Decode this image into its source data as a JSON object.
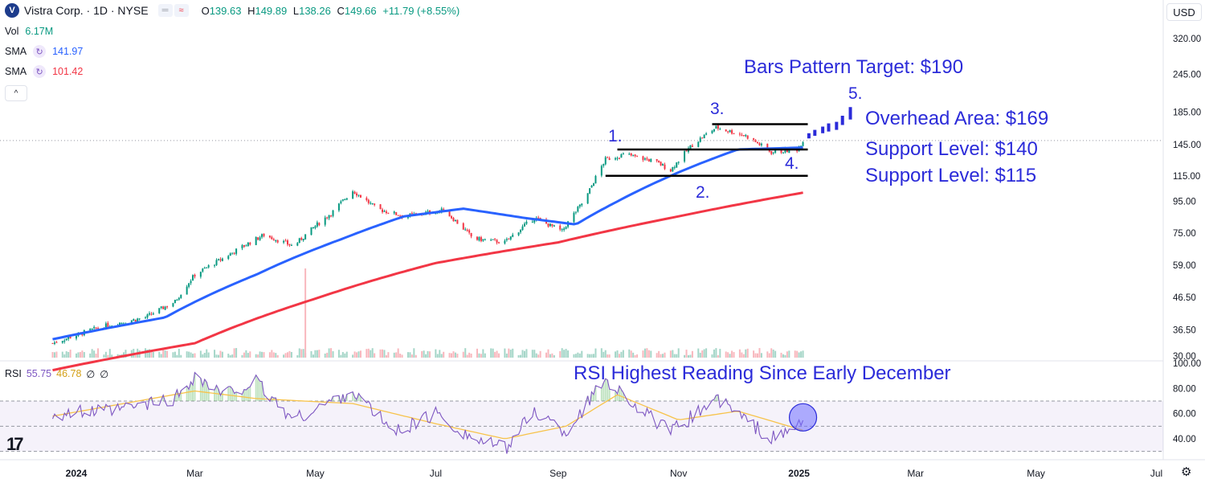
{
  "header": {
    "symbol_title": "Vistra Corp. · 1D · NYSE",
    "logo_letter": "V",
    "pill_1": "═",
    "pill_2": "≈",
    "open_label": "O",
    "open": "139.63",
    "high_label": "H",
    "high": "149.89",
    "low_label": "L",
    "low": "138.26",
    "close_label": "C",
    "close": "149.66",
    "change": "+11.79 (+8.55%)",
    "currency": "USD"
  },
  "indicators": {
    "vol_label": "Vol",
    "vol_value": "6.17M",
    "sma1_label": "SMA",
    "sma1_value": "141.97",
    "sma2_label": "SMA",
    "sma2_value": "101.42",
    "rsi_label": "RSI",
    "rsi_value": "55.75",
    "rsi_ma_value": "46.78",
    "rsi_extra1": "∅",
    "rsi_extra2": "∅",
    "sma_icon": "↻",
    "collapse_icon": "^",
    "tv_logo": "17",
    "gear_icon": "⚙"
  },
  "colors": {
    "up": "#089981",
    "down": "#f23645",
    "sma_fast": "#2962ff",
    "sma_slow": "#f23645",
    "rsi": "#7e57c2",
    "rsi_ma": "#f7c34a",
    "annotation": "#2b2bd9"
  },
  "annotations": {
    "target": "Bars Pattern Target: $190",
    "overhead": "Overhead Area: $169",
    "support_140": "Support Level: $140",
    "support_115": "Support Level: $115",
    "rsi_note": "RSI Highest Reading Since Early December",
    "n1": "1.",
    "n2": "2.",
    "n3": "3.",
    "n4": "4.",
    "n5": "5."
  },
  "chart_data": {
    "type": "candlestick",
    "scale": "log",
    "y_ticks": [
      "320.00",
      "245.00",
      "185.00",
      "145.00",
      "115.00",
      "95.00",
      "75.00",
      "59.00",
      "46.50",
      "36.50",
      "30.00"
    ],
    "x_ticks": [
      "2024",
      "Mar",
      "May",
      "Jul",
      "Sep",
      "Nov",
      "2025",
      "Mar",
      "May",
      "Jul"
    ],
    "rsi_ticks": [
      "100.00",
      "80.00",
      "60.00",
      "40.00"
    ],
    "rsi_levels": [
      70,
      50,
      30
    ],
    "price_anchors": [
      [
        "2023-12-20",
        33
      ],
      [
        "2024-01-15",
        37.5
      ],
      [
        "2024-02-05",
        40
      ],
      [
        "2024-02-20",
        45
      ],
      [
        "2024-03-01",
        55
      ],
      [
        "2024-03-15",
        62
      ],
      [
        "2024-04-05",
        74
      ],
      [
        "2024-04-20",
        68
      ],
      [
        "2024-05-10",
        88
      ],
      [
        "2024-05-20",
        103
      ],
      [
        "2024-06-01",
        90
      ],
      [
        "2024-06-15",
        85
      ],
      [
        "2024-07-05",
        89
      ],
      [
        "2024-07-20",
        72
      ],
      [
        "2024-08-05",
        70
      ],
      [
        "2024-08-20",
        84
      ],
      [
        "2024-09-03",
        76
      ],
      [
        "2024-09-15",
        97
      ],
      [
        "2024-09-25",
        130
      ],
      [
        "2024-10-05",
        135
      ],
      [
        "2024-10-20",
        128
      ],
      [
        "2024-10-28",
        120
      ],
      [
        "2024-11-08",
        145
      ],
      [
        "2024-11-20",
        165
      ],
      [
        "2024-12-05",
        155
      ],
      [
        "2024-12-18",
        137
      ],
      [
        "2024-12-31",
        140
      ],
      [
        "2025-01-03",
        149.66
      ]
    ],
    "sma_fast_anchors": [
      [
        "2023-12-20",
        34
      ],
      [
        "2024-02-15",
        40
      ],
      [
        "2024-04-01",
        55
      ],
      [
        "2024-05-15",
        72
      ],
      [
        "2024-06-15",
        85
      ],
      [
        "2024-07-15",
        90
      ],
      [
        "2024-08-15",
        84
      ],
      [
        "2024-09-10",
        80
      ],
      [
        "2024-10-01",
        95
      ],
      [
        "2024-11-01",
        118
      ],
      [
        "2024-12-01",
        140
      ],
      [
        "2025-01-03",
        141.97
      ]
    ],
    "sma_slow_anchors": [
      [
        "2023-12-20",
        27
      ],
      [
        "2024-03-01",
        33
      ],
      [
        "2024-05-01",
        46
      ],
      [
        "2024-07-01",
        60
      ],
      [
        "2024-09-01",
        70
      ],
      [
        "2024-11-01",
        85
      ],
      [
        "2025-01-03",
        101.42
      ]
    ],
    "projection_bars": [
      [
        "2025-01-06",
        152,
        158
      ],
      [
        "2025-01-09",
        155,
        162
      ],
      [
        "2025-01-13",
        158,
        166
      ],
      [
        "2025-01-16",
        160,
        170
      ],
      [
        "2025-01-20",
        162,
        172
      ],
      [
        "2025-01-23",
        168,
        180
      ],
      [
        "2025-01-27",
        175,
        192
      ]
    ],
    "horizontal_levels": [
      {
        "value": 169,
        "from": "2024-11-18",
        "to": "2025-01-03"
      },
      {
        "value": 140,
        "from": "2024-10-01",
        "to": "2025-01-03"
      },
      {
        "value": 115,
        "from": "2024-09-25",
        "to": "2025-01-03"
      }
    ],
    "volume_spike": {
      "date": "2024-04-26",
      "value_millions": 28
    },
    "rsi_anchors": [
      [
        "2023-12-20",
        60
      ],
      [
        "2024-01-20",
        62
      ],
      [
        "2024-02-20",
        72
      ],
      [
        "2024-03-01",
        90
      ],
      [
        "2024-03-15",
        75
      ],
      [
        "2024-04-01",
        85
      ],
      [
        "2024-04-20",
        55
      ],
      [
        "2024-05-20",
        78
      ],
      [
        "2024-06-10",
        45
      ],
      [
        "2024-07-01",
        60
      ],
      [
        "2024-07-20",
        40
      ],
      [
        "2024-08-05",
        32
      ],
      [
        "2024-08-20",
        62
      ],
      [
        "2024-09-05",
        45
      ],
      [
        "2024-09-25",
        88
      ],
      [
        "2024-10-15",
        60
      ],
      [
        "2024-10-28",
        45
      ],
      [
        "2024-11-20",
        72
      ],
      [
        "2024-12-05",
        55
      ],
      [
        "2024-12-18",
        40
      ],
      [
        "2024-12-28",
        45
      ],
      [
        "2025-01-03",
        55.75
      ]
    ],
    "rsi_ma_anchors": [
      [
        "2023-12-20",
        58
      ],
      [
        "2024-03-01",
        78
      ],
      [
        "2024-04-01",
        72
      ],
      [
        "2024-05-20",
        68
      ],
      [
        "2024-07-01",
        52
      ],
      [
        "2024-08-05",
        40
      ],
      [
        "2024-09-05",
        50
      ],
      [
        "2024-10-01",
        75
      ],
      [
        "2024-11-01",
        55
      ],
      [
        "2024-12-01",
        62
      ],
      [
        "2025-01-03",
        46.78
      ]
    ]
  }
}
